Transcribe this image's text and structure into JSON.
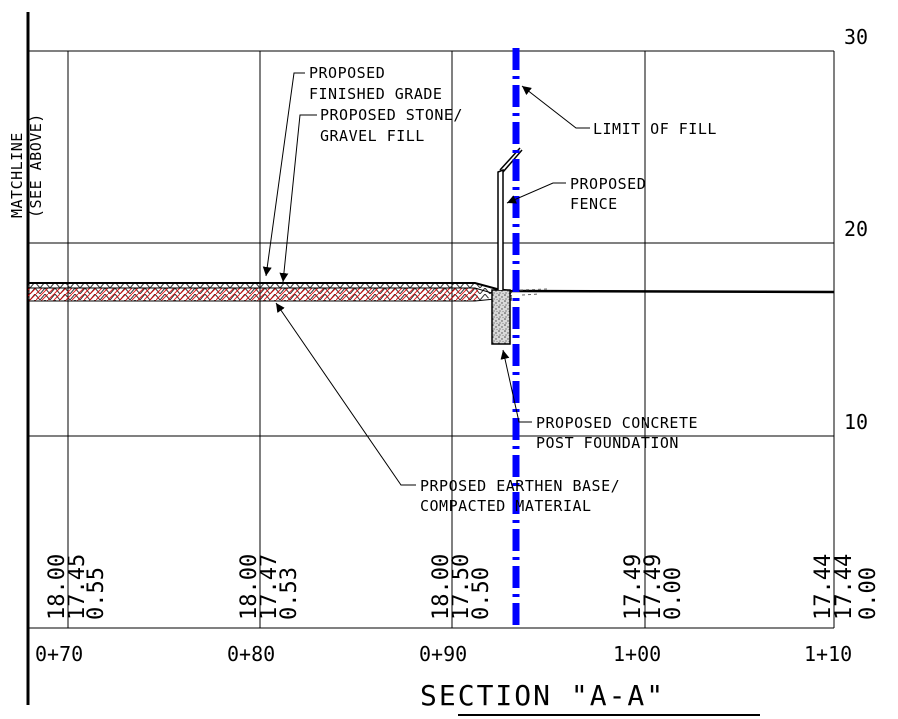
{
  "section": {
    "title": "SECTION \"A-A\"",
    "matchline": {
      "line1": "MATCHLINE",
      "line2": "(SEE ABOVE)"
    }
  },
  "vertical_scale": [
    "30",
    "20",
    "10"
  ],
  "stations": [
    "0+70",
    "0+80",
    "0+90",
    "1+00",
    "1+10"
  ],
  "elevations": {
    "sta_070": [
      "18.00",
      "17.45",
      "0.55"
    ],
    "sta_080": [
      "18.00",
      "17.47",
      "0.53"
    ],
    "sta_090": [
      "18.00",
      "17.50",
      "0.50"
    ],
    "sta_100": [
      "17.49",
      "17.49",
      "0.00"
    ],
    "sta_110": [
      "17.44",
      "17.44",
      "0.00"
    ]
  },
  "callouts": {
    "finished_grade": {
      "line1": "PROPOSED",
      "line2": "FINISHED GRADE"
    },
    "stone_fill": {
      "line1": "PROPOSED STONE/",
      "line2": "GRAVEL FILL"
    },
    "limit_of_fill": "LIMIT OF FILL",
    "fence": {
      "line1": "PROPOSED",
      "line2": "FENCE"
    },
    "concrete": {
      "line1": "PROPOSED CONCRETE",
      "line2": "POST FOUNDATION"
    },
    "earthen_base": {
      "line1": "PRPOSED EARTHEN BASE/",
      "line2": "COMPACTED MATERIAL"
    }
  },
  "colors": {
    "limit_line": "#0000ff",
    "fill_hatch": "#ff0000",
    "linework": "#000000"
  }
}
